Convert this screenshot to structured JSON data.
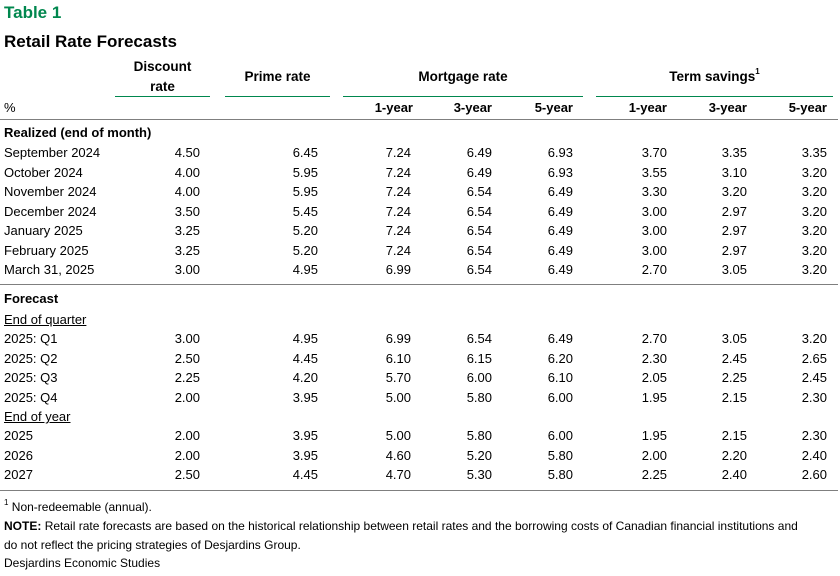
{
  "table_label": "Table 1",
  "title": "Retail Rate Forecasts",
  "headers": {
    "discount_line1": "Discount",
    "discount_line2": "rate",
    "prime": "Prime rate",
    "mortgage": "Mortgage rate",
    "term_savings": "Term savings",
    "term_savings_sup": "1",
    "unit": "%",
    "sub_cols": [
      "1-year",
      "3-year",
      "5-year",
      "1-year",
      "3-year",
      "5-year"
    ]
  },
  "sections": {
    "realized": "Realized (end of month)",
    "forecast": "Forecast",
    "end_of_quarter": "End of quarter",
    "end_of_year": "End of year"
  },
  "realized_rows": [
    {
      "label": "September 2024",
      "values": [
        "4.50",
        "6.45",
        "7.24",
        "6.49",
        "6.93",
        "3.70",
        "3.35",
        "3.35"
      ]
    },
    {
      "label": "October 2024",
      "values": [
        "4.00",
        "5.95",
        "7.24",
        "6.49",
        "6.93",
        "3.55",
        "3.10",
        "3.20"
      ]
    },
    {
      "label": "November 2024",
      "values": [
        "4.00",
        "5.95",
        "7.24",
        "6.54",
        "6.49",
        "3.30",
        "3.20",
        "3.20"
      ]
    },
    {
      "label": "December 2024",
      "values": [
        "3.50",
        "5.45",
        "7.24",
        "6.54",
        "6.49",
        "3.00",
        "2.97",
        "3.20"
      ]
    },
    {
      "label": "January 2025",
      "values": [
        "3.25",
        "5.20",
        "7.24",
        "6.54",
        "6.49",
        "3.00",
        "2.97",
        "3.20"
      ]
    },
    {
      "label": "February 2025",
      "values": [
        "3.25",
        "5.20",
        "7.24",
        "6.54",
        "6.49",
        "3.00",
        "2.97",
        "3.20"
      ]
    },
    {
      "label": "March 31, 2025",
      "values": [
        "3.00",
        "4.95",
        "6.99",
        "6.54",
        "6.49",
        "2.70",
        "3.05",
        "3.20"
      ]
    }
  ],
  "quarter_rows": [
    {
      "label": "2025: Q1",
      "values": [
        "3.00",
        "4.95",
        "6.99",
        "6.54",
        "6.49",
        "2.70",
        "3.05",
        "3.20"
      ]
    },
    {
      "label": "2025: Q2",
      "values": [
        "2.50",
        "4.45",
        "6.10",
        "6.15",
        "6.20",
        "2.30",
        "2.45",
        "2.65"
      ]
    },
    {
      "label": "2025: Q3",
      "values": [
        "2.25",
        "4.20",
        "5.70",
        "6.00",
        "6.10",
        "2.05",
        "2.25",
        "2.45"
      ]
    },
    {
      "label": "2025: Q4",
      "values": [
        "2.00",
        "3.95",
        "5.00",
        "5.80",
        "6.00",
        "1.95",
        "2.15",
        "2.30"
      ]
    }
  ],
  "year_rows": [
    {
      "label": "2025",
      "values": [
        "2.00",
        "3.95",
        "5.00",
        "5.80",
        "6.00",
        "1.95",
        "2.15",
        "2.30"
      ]
    },
    {
      "label": "2026",
      "values": [
        "2.00",
        "3.95",
        "4.60",
        "5.20",
        "5.80",
        "2.00",
        "2.20",
        "2.40"
      ]
    },
    {
      "label": "2027",
      "values": [
        "2.50",
        "4.45",
        "4.70",
        "5.30",
        "5.80",
        "2.25",
        "2.40",
        "2.60"
      ]
    }
  ],
  "footnote_sup": "1",
  "footnote": "Non-redeemable (annual).",
  "note_label": "NOTE:",
  "note_line1": "Retail rate forecasts are based on the historical relationship between retail rates and the borrowing costs of Canadian financial institutions and",
  "note_line2": "do not reflect the pricing strategies of Desjardins Group.",
  "source": "Desjardins Economic Studies"
}
